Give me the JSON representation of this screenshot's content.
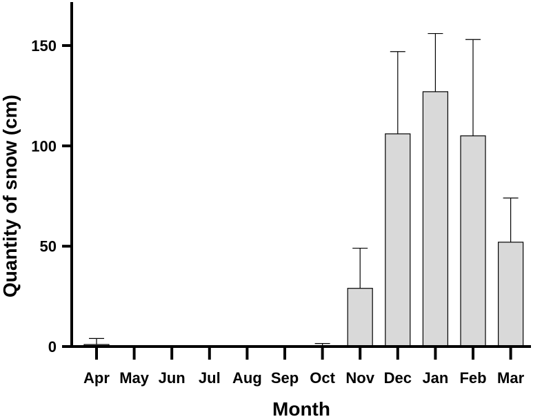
{
  "chart_data": {
    "type": "bar",
    "title": "",
    "xlabel": "Month",
    "ylabel": "Quantity of snow (cm)",
    "ylim": [
      0,
      170
    ],
    "yticks": [
      0,
      50,
      100,
      150
    ],
    "grid": false,
    "categories": [
      "Apr",
      "May",
      "Jun",
      "Jul",
      "Aug",
      "Sep",
      "Oct",
      "Nov",
      "Dec",
      "Jan",
      "Feb",
      "Mar"
    ],
    "values": [
      1,
      0,
      0,
      0,
      0,
      0,
      0,
      29,
      106,
      127,
      105,
      52
    ],
    "error_upper": [
      4,
      0,
      0,
      0,
      0,
      0,
      1.5,
      49,
      147,
      156,
      153,
      74
    ],
    "bar_color": "#d9d9d9",
    "edge_color": "#000000"
  }
}
